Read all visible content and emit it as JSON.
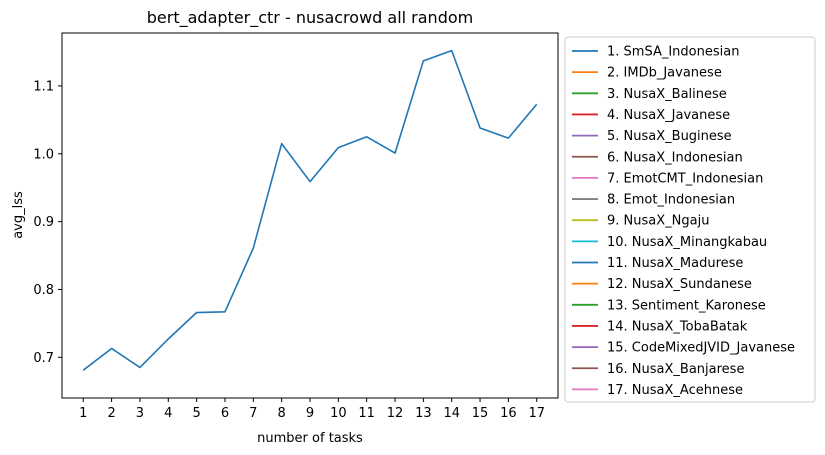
{
  "chart_data": {
    "type": "line",
    "title": "bert_adapter_ctr - nusacrowd all random",
    "xlabel": "number of tasks",
    "ylabel": "avg_lss",
    "x": [
      1,
      2,
      3,
      4,
      5,
      6,
      7,
      8,
      9,
      10,
      11,
      12,
      13,
      14,
      15,
      16,
      17
    ],
    "xlim": [
      0.25,
      17.75
    ],
    "ylim": [
      0.64,
      1.178
    ],
    "yticks": [
      0.7,
      0.8,
      0.9,
      1.0,
      1.1
    ],
    "ytick_labels": [
      "0.7",
      "0.8",
      "0.9",
      "1.0",
      "1.1"
    ],
    "grid": false,
    "legend_position": "outside-right",
    "series": [
      {
        "name": "1. SmSA_Indonesian",
        "color": "#1f77b4",
        "values": [
          0.681,
          0.713,
          0.685,
          0.727,
          0.766,
          0.767,
          0.861,
          1.015,
          0.959,
          1.009,
          1.025,
          1.001,
          1.137,
          1.152,
          1.038,
          1.023,
          1.073
        ]
      }
    ],
    "legend": [
      {
        "label": "1. SmSA_Indonesian",
        "color": "#1f77b4"
      },
      {
        "label": "2. IMDb_Javanese",
        "color": "#ff7f0e"
      },
      {
        "label": "3. NusaX_Balinese",
        "color": "#2ca02c"
      },
      {
        "label": "4. NusaX_Javanese",
        "color": "#d62728"
      },
      {
        "label": "5. NusaX_Buginese",
        "color": "#9467bd"
      },
      {
        "label": "6. NusaX_Indonesian",
        "color": "#8c564b"
      },
      {
        "label": "7. EmotCMT_Indonesian",
        "color": "#e377c2"
      },
      {
        "label": "8. Emot_Indonesian",
        "color": "#7f7f7f"
      },
      {
        "label": "9. NusaX_Ngaju",
        "color": "#bcbd22"
      },
      {
        "label": "10. NusaX_Minangkabau",
        "color": "#17becf"
      },
      {
        "label": "11. NusaX_Madurese",
        "color": "#1f77b4"
      },
      {
        "label": "12. NusaX_Sundanese",
        "color": "#ff7f0e"
      },
      {
        "label": "13. Sentiment_Karonese",
        "color": "#2ca02c"
      },
      {
        "label": "14. NusaX_TobaBatak",
        "color": "#d62728"
      },
      {
        "label": "15. CodeMixedJVID_Javanese",
        "color": "#9467bd"
      },
      {
        "label": "16. NusaX_Banjarese",
        "color": "#8c564b"
      },
      {
        "label": "17. NusaX_Acehnese",
        "color": "#e377c2"
      }
    ]
  }
}
